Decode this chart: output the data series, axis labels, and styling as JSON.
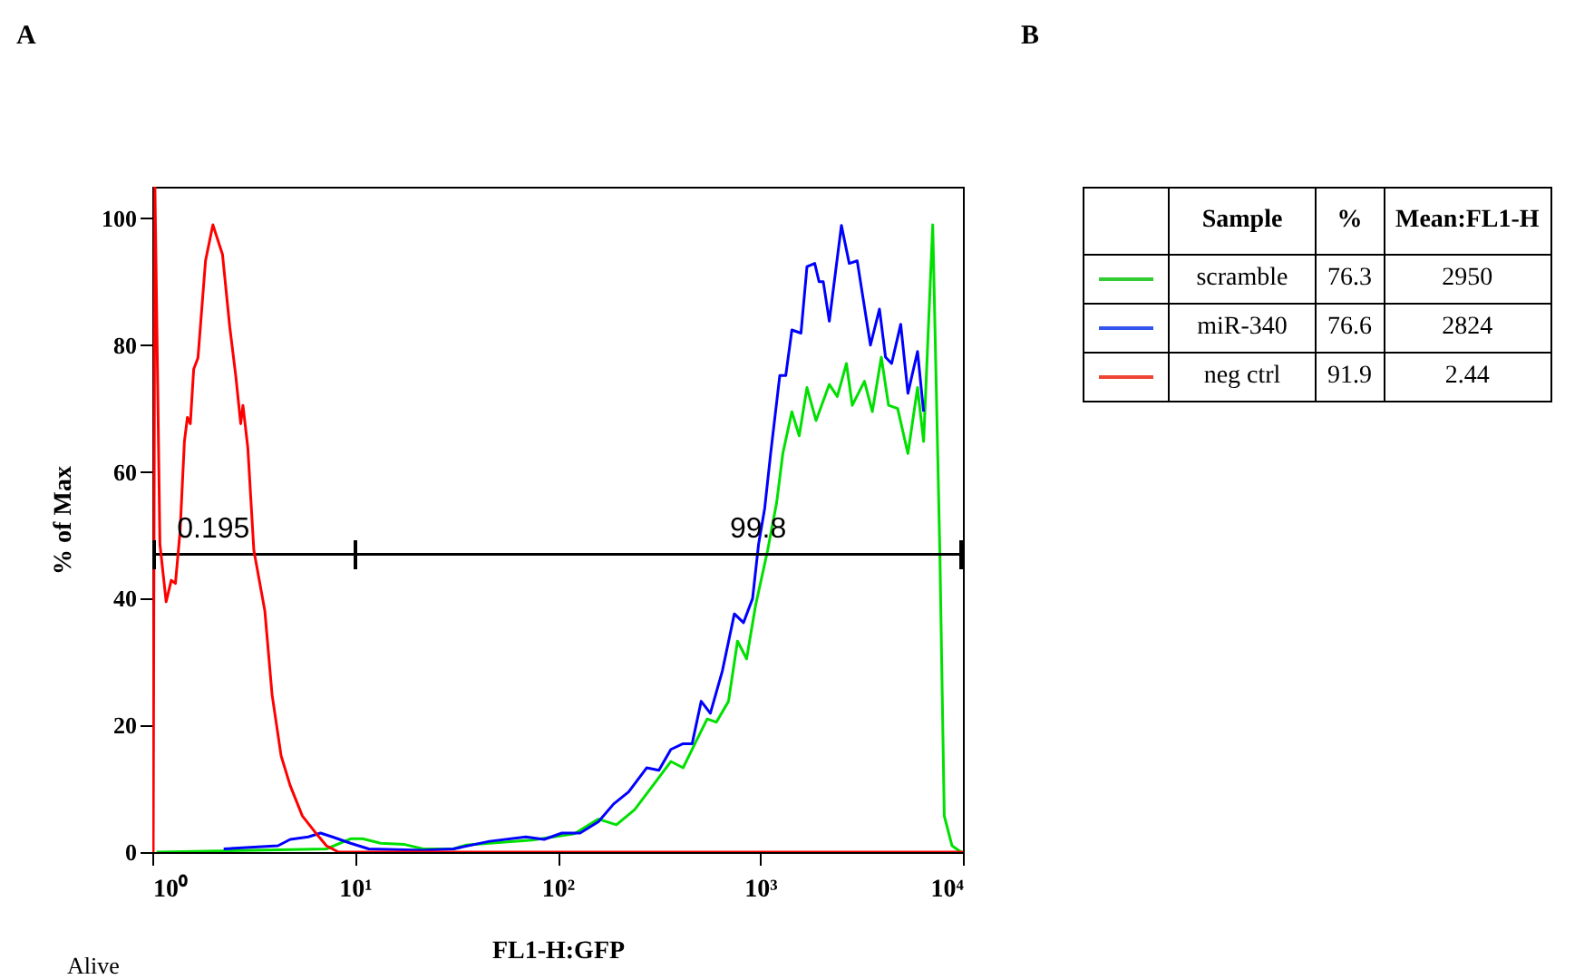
{
  "chart_data": [
    {
      "type": "line",
      "title": "A",
      "xlabel": "FL1-H:GFP",
      "ylabel": "% of Max",
      "log": "x",
      "xlim": [
        1,
        10000
      ],
      "ylim": [
        0,
        105
      ],
      "xticks": [
        {
          "value": 1,
          "label": "10⁰"
        },
        {
          "value": 10,
          "label": "10¹"
        },
        {
          "value": 100,
          "label": "10²"
        },
        {
          "value": 1000,
          "label": "10³"
        },
        {
          "value": 10000,
          "label": "10⁴"
        }
      ],
      "yticks": [
        0,
        20,
        40,
        60,
        80,
        100
      ],
      "grid": false,
      "legend": false,
      "line_style": "solid",
      "annotations": [
        "Alive",
        {
          "text": "0.195",
          "x": 2,
          "y": 47
        },
        {
          "text": "99.8",
          "x": 975,
          "y": 47
        }
      ],
      "series": [
        {
          "color": "#00e000",
          "x": [
            1.05,
            7.23,
            9.51,
            10.9,
            13.4,
            17.6,
            21.7,
            30.6,
            35.1,
            46.1,
            74.6,
            121,
            159,
            195,
            240,
            295,
            362,
            416,
            476,
            547,
            607,
            697,
            772,
            856,
            949,
            1087,
            1205,
            1292,
            1432,
            1556,
            1700,
            1884,
            2191,
            2399,
            2661,
            2845,
            3266,
            3572,
            3956,
            4297,
            4762,
            5354,
            5970,
            6397,
            7096,
            7700,
            8091,
            8836,
            9795
          ],
          "values": [
            0,
            0.5,
            2.1,
            2.1,
            1.4,
            1.2,
            0.5,
            0.5,
            1.1,
            1.4,
            1.9,
            2.9,
            5.2,
            4.3,
            6.7,
            10.5,
            14.3,
            13.3,
            17.1,
            21,
            20.5,
            23.8,
            33.3,
            30.5,
            39,
            47.6,
            55.2,
            62.9,
            69.5,
            65.7,
            73.3,
            68.1,
            73.8,
            71.9,
            77.1,
            70.5,
            74.3,
            69.5,
            78.1,
            70.5,
            70,
            62.9,
            73.3,
            64.8,
            99,
            46.7,
            5.7,
            1,
            0
          ]
        },
        {
          "color": "#0000ff",
          "x": [
            2.25,
            4.17,
            4.79,
            5.88,
            6.76,
            7.74,
            9.51,
            11.7,
            21.5,
            30.6,
            46.1,
            69.7,
            85.7,
            105,
            129,
            159,
            189,
            224,
            275,
            316,
            362,
            416,
            461,
            511,
            567,
            650,
            745,
            826,
            916,
            981,
            1052,
            1125,
            1248,
            1336,
            1432,
            1588,
            1700,
            1857,
            1951,
            2046,
            2191,
            2514,
            2748,
            3008,
            3497,
            3874,
            4150,
            4448,
            4932,
            5354,
            5970,
            6397
          ],
          "values": [
            0.5,
            1,
            2,
            2.4,
            3,
            2.4,
            1.4,
            0.5,
            0.3,
            0.5,
            1.7,
            2.4,
            2,
            3,
            3,
            4.8,
            7.6,
            9.5,
            13.3,
            12.9,
            16.2,
            17.1,
            17.1,
            23.8,
            21.9,
            28.6,
            37.6,
            36.2,
            40,
            48.6,
            54.3,
            62.9,
            75.2,
            75.2,
            82.4,
            81.9,
            92.4,
            92.9,
            90,
            90,
            83.8,
            98.9,
            92.9,
            93.3,
            80,
            85.7,
            78.1,
            77.1,
            83.3,
            72.4,
            79,
            69.5
          ]
        },
        {
          "type": "line",
          "color": "#000000",
          "x": [
            1,
            10,
            10000
          ],
          "values": [
            47,
            47,
            47
          ]
        },
        {
          "color": "#ff0000",
          "x": [
            1.01,
            1.03,
            1.09,
            1.17,
            1.24,
            1.3,
            1.37,
            1.44,
            1.49,
            1.54,
            1.6,
            1.68,
            1.83,
            1.99,
            2.22,
            2.41,
            2.58,
            2.73,
            2.8,
            2.96,
            3.17,
            3.59,
            3.9,
            4.32,
            4.79,
            5.5,
            6.3,
            7.23,
            8.3,
            10000
          ],
          "values": [
            0,
            105,
            48.6,
            39.5,
            42.9,
            42.4,
            50.5,
            64.8,
            68.6,
            67.6,
            76.2,
            78,
            93.3,
            99,
            94.3,
            82.9,
            75.2,
            67.6,
            70.5,
            63.8,
            47.6,
            38.1,
            24.8,
            15.2,
            10.5,
            5.7,
            3.3,
            1,
            0,
            0
          ]
        }
      ]
    },
    {
      "type": "other",
      "title": "B",
      "xlabel": "Sample",
      "categories": [
        "scramble",
        "miR-340",
        "neg ctrl"
      ],
      "colors": [
        "#33cc33",
        "#3355ee",
        "#ee4433"
      ],
      "data_labels": true,
      "series": [
        {
          "name": "%",
          "values": [
            76.3,
            76.6,
            91.9
          ]
        },
        {
          "name": "Mean:FL1-H",
          "values": [
            2950,
            2824,
            2.44
          ]
        }
      ]
    }
  ]
}
